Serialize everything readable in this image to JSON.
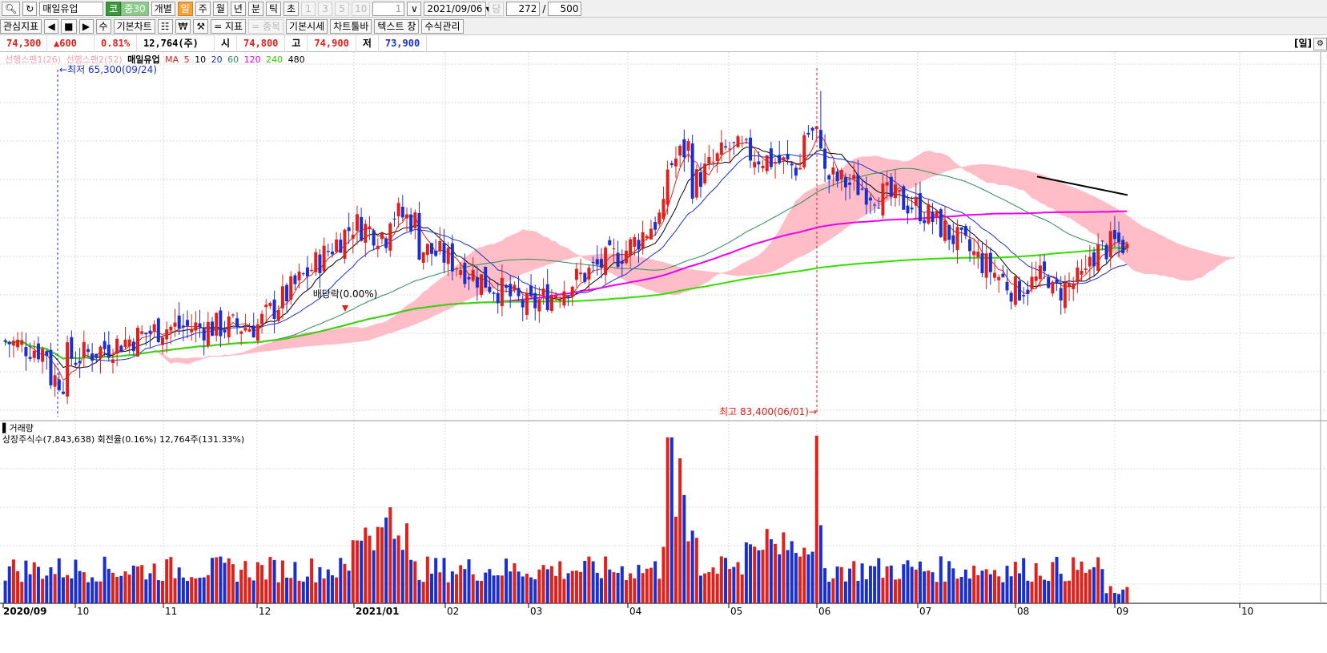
{
  "toolbar": {
    "stock_name": "매일유업",
    "market_badge": "코",
    "group_badge": "중30",
    "periods": [
      "개별",
      "일",
      "주",
      "월",
      "년",
      "분",
      "틱",
      "초"
    ],
    "selected_period": "일",
    "intervals": [
      "1",
      "3",
      "5",
      "10"
    ],
    "interval_value": "1",
    "date": "2021/09/06",
    "date_prefix": "당",
    "view_count": "272",
    "separator": "/",
    "total_count": "500"
  },
  "toolbar2": {
    "interest_indicator": "관심지표",
    "basic_chart": "기본차트",
    "indicator": "= 지표",
    "item": "= 종목",
    "basic_quote": "기본시세",
    "chart_toolbar": "차트툴바",
    "text_toggle": "텍스트 창",
    "formula_manager": "수식관리",
    "nav_labels": [
      "◀",
      "■",
      "▶",
      "수"
    ]
  },
  "quote": {
    "price": "74,300",
    "change": "▲600",
    "rate": "0.81%",
    "volume": "12,764(주)",
    "open_label": "시",
    "open": "74,800",
    "high_label": "고",
    "high": "74,900",
    "low_label": "저",
    "low": "73,900",
    "period_badge": "[일]"
  },
  "legend": {
    "span1": "선행스팬1(26)",
    "span2": "선행스팬2(52)",
    "title": "매일유업",
    "ma_label": "MA",
    "ma_periods": [
      "5",
      "10",
      "20",
      "60",
      "120",
      "240",
      "480"
    ]
  },
  "colors": {
    "up": "#e0201a",
    "down": "#1a2fd0",
    "cloud": "#ffbdc8",
    "ma5": "#e0201a",
    "ma10": "#000000",
    "ma20": "#1a2fd0",
    "ma60": "#2e8b57",
    "ma120": "#ee00ee",
    "ma240": "#33dd00",
    "ma480": "#000000"
  },
  "annotations": {
    "low_marker": "←최저 65,300(09/24)",
    "high_marker": "최고 83,400(06/01)→",
    "dividend": "배당락(0.00%)"
  },
  "volume_panel": {
    "title": "거래량",
    "info": "상장주식수(7,843,638) 회전율(0.16%) 12,764주(131.33%)"
  },
  "x_axis": [
    "2020/09",
    "10",
    "11",
    "12",
    "2021/01",
    "02",
    "03",
    "04",
    "05",
    "06",
    "07",
    "08",
    "09",
    "10"
  ],
  "chart_data": {
    "type": "candlestick",
    "title": "매일유업",
    "period": "일",
    "x_range": [
      "2020/09",
      "2021/10"
    ],
    "y_range": [
      64000,
      85000
    ],
    "highest": {
      "value": 83400,
      "date": "06/01"
    },
    "lowest": {
      "value": 65300,
      "date": "09/24"
    },
    "last_close": 74300,
    "ohlc_anchor_closes": [
      {
        "month": "2020/09",
        "close": 68500
      },
      {
        "month": "10",
        "close": 67500
      },
      {
        "month": "11",
        "close": 69300
      },
      {
        "month": "12",
        "close": 69400
      },
      {
        "month": "2021/01",
        "close": 75500
      },
      {
        "month": "02",
        "close": 73500
      },
      {
        "month": "03",
        "close": 70500
      },
      {
        "month": "04",
        "close": 74000
      },
      {
        "month": "05",
        "close": 80000
      },
      {
        "month": "06",
        "close": 78500
      },
      {
        "month": "07",
        "close": 76500
      },
      {
        "month": "08",
        "close": 71500
      },
      {
        "month": "09",
        "close": 74300
      }
    ]
  }
}
